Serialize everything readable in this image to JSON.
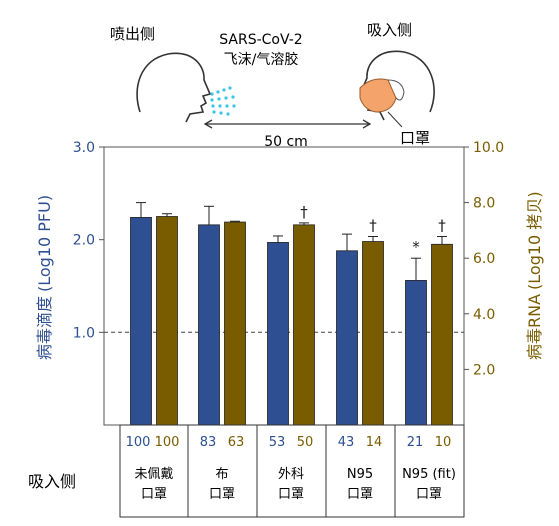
{
  "illustration": {
    "emitter_label": "喷出侧",
    "receiver_label": "吸入侧",
    "virus": "SARS-CoV-2",
    "medium": "飞沫/气溶胶",
    "distance": "50 cm",
    "mask_label": "口罩"
  },
  "colors": {
    "pfu": "#2e4f91",
    "rna": "#7a5c00"
  },
  "table": {
    "row_label": "吸入侧",
    "groups": [
      {
        "pct_pfu": "100",
        "pct_rna": "100",
        "name1": "未佩戴",
        "name2": "口罩"
      },
      {
        "pct_pfu": "83",
        "pct_rna": "63",
        "name1": "布",
        "name2": "口罩"
      },
      {
        "pct_pfu": "53",
        "pct_rna": "50",
        "name1": "外科",
        "name2": "口罩"
      },
      {
        "pct_pfu": "43",
        "pct_rna": "14",
        "name1": "N95",
        "name2": "口罩"
      },
      {
        "pct_pfu": "21",
        "pct_rna": "10",
        "name1": "N95 (fit)",
        "name2": "口罩"
      }
    ]
  },
  "chart_data": {
    "type": "bar",
    "categories": [
      "未佩戴口罩",
      "布口罩",
      "外科口罩",
      "N95口罩",
      "N95 (fit)口罩"
    ],
    "series": [
      {
        "name": "病毒滴度 (Log10 PFU)",
        "axis": "left",
        "color": "#2e4f91",
        "values": [
          2.24,
          2.16,
          1.97,
          1.88,
          1.56
        ],
        "errors": [
          0.16,
          0.2,
          0.07,
          0.18,
          0.24
        ],
        "marks": [
          "",
          "",
          "",
          "",
          "*"
        ]
      },
      {
        "name": "病毒RNA (Log10 拷贝)",
        "axis": "right",
        "color": "#7a5c00",
        "values": [
          7.5,
          7.3,
          7.2,
          6.6,
          6.5
        ],
        "errors": [
          0.1,
          0.03,
          0.07,
          0.18,
          0.28
        ],
        "marks": [
          "",
          "",
          "†",
          "†",
          "†"
        ]
      }
    ],
    "left_axis": {
      "ylim": [
        0,
        3.0
      ],
      "ticks": [
        "3.0",
        "2.0",
        "1.0"
      ],
      "label_main": "病毒滴度",
      "label_unit": "(Log10 PFU)"
    },
    "right_axis": {
      "ylim": [
        0,
        10.0
      ],
      "ticks": [
        "10.0",
        "8.0",
        "6.0",
        "4.0",
        "2.0"
      ],
      "label_main": "病毒RNA",
      "label_unit": "(Log10 拷贝)"
    },
    "reference_line": 1.0
  }
}
